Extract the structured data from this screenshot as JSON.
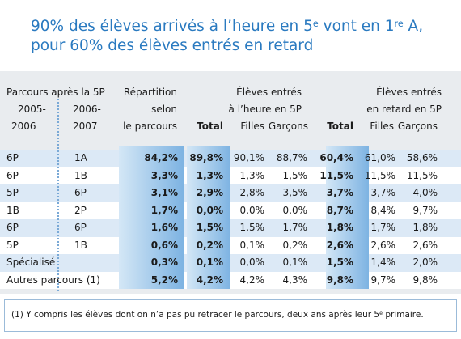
{
  "title": {
    "line1": [
      "90% des élèves arrivés à l’heure en 5",
      "e",
      " vont en 1",
      "re",
      " A,"
    ],
    "line2": "pour 60% des élèves entrés en retard"
  },
  "header": {
    "parcours": "Parcours après la 5P",
    "year1": [
      "2005-",
      "2006"
    ],
    "year2": [
      "2006-",
      "2007"
    ],
    "repartition": [
      "Répartition",
      "selon",
      "le parcours"
    ],
    "total1": "Total",
    "heure": [
      "Élèves entrés",
      "à l’heure en 5P"
    ],
    "filles1": "Filles",
    "garcons1": "Garçons",
    "total2": "Total",
    "retard": [
      "Élèves entrés",
      "en retard en 5P"
    ],
    "filles2": "Filles",
    "garcons2": "Garçons"
  },
  "rows": [
    [
      "6P",
      "1A",
      "84,2%",
      "89,8%",
      "90,1%",
      "88,7%",
      "60,4%",
      "61,0%",
      "58,6%"
    ],
    [
      "6P",
      "1B",
      "3,3%",
      "1,3%",
      "1,3%",
      "1,5%",
      "11,5%",
      "11,5%",
      "11,5%"
    ],
    [
      "5P",
      "6P",
      "3,1%",
      "2,9%",
      "2,8%",
      "3,5%",
      "3,7%",
      "3,7%",
      "4,0%"
    ],
    [
      "1B",
      "2P",
      "1,7%",
      "0,0%",
      "0,0%",
      "0,0%",
      "8,7%",
      "8,4%",
      "9,7%"
    ],
    [
      "6P",
      "6P",
      "1,6%",
      "1,5%",
      "1,5%",
      "1,7%",
      "1,8%",
      "1,7%",
      "1,8%"
    ],
    [
      "5P",
      "1B",
      "0,6%",
      "0,2%",
      "0,1%",
      "0,2%",
      "2,6%",
      "2,6%",
      "2,6%"
    ],
    [
      "Spécialisé",
      "0,3%",
      "0,1%",
      "0,0%",
      "0,1%",
      "1,5%",
      "1,4%",
      "2,0%"
    ],
    [
      "Autres parcours (1)",
      "5,2%",
      "4,2%",
      "4,2%",
      "4,3%",
      "9,8%",
      "9,7%",
      "9,8%"
    ]
  ],
  "footnote": [
    "(1) Y compris les élèves dont on n’a pas pu retracer le parcours, deux ans après leur 5",
    "e",
    " primaire."
  ]
}
